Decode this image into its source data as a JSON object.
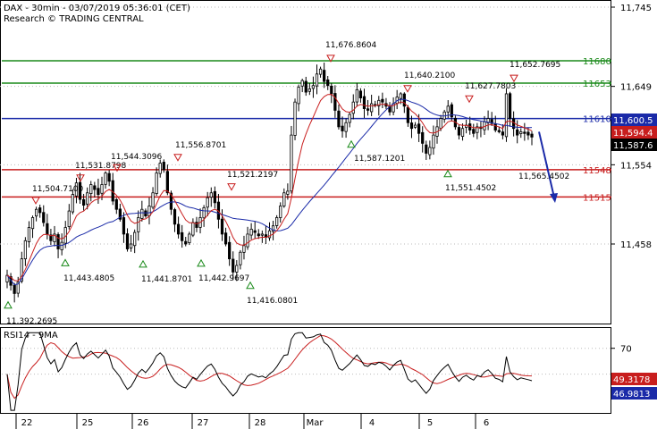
{
  "header": {
    "title": "DAX - 30min - 03/07/2019 05:36:01 (CET)",
    "subtitle": "Research © TRADING CENTRAL"
  },
  "chart_data": {
    "type": "candlestick",
    "price_axis": {
      "ticks": [
        {
          "value": 11745,
          "label": "11,745"
        },
        {
          "value": 11649,
          "label": "11,649"
        },
        {
          "value": 11554,
          "label": "11,554"
        },
        {
          "value": 11458,
          "label": "11,458"
        }
      ]
    },
    "x_axis": {
      "labels": [
        "22",
        "25",
        "26",
        "27",
        "28",
        "Mar",
        "4",
        "5",
        "6"
      ]
    },
    "levels": [
      {
        "value": 11680,
        "label": "11680",
        "color": "#1a8a1a"
      },
      {
        "value": 11653,
        "label": "11653",
        "color": "#1a8a1a"
      },
      {
        "value": 11610,
        "label": "11610",
        "color": "#1a2aa8"
      },
      {
        "value": 11548,
        "label": "11548",
        "color": "#c81e1e"
      },
      {
        "value": 11515,
        "label": "11515",
        "color": "#c81e1e"
      }
    ],
    "price_tags": [
      {
        "value": 11600.5,
        "label": "11,600.5",
        "bg": "#1a2aa8"
      },
      {
        "value": 11594.4,
        "label": "11,594.4",
        "bg": "#c81e1e"
      },
      {
        "value": 11587.6,
        "label": "11,587.6",
        "bg": "#000000"
      }
    ],
    "swing_highs": [
      {
        "label": "11,504.7100",
        "value": 11504.71
      },
      {
        "label": "11,531.8798",
        "value": 11531.8798
      },
      {
        "label": "11,544.3096",
        "value": 11544.3096
      },
      {
        "label": "11,556.8701",
        "value": 11556.8701
      },
      {
        "label": "11,521.2197",
        "value": 11521.2197
      },
      {
        "label": "11,676.8604",
        "value": 11676.8604
      },
      {
        "label": "11,640.2100",
        "value": 11640.21
      },
      {
        "label": "11,627.7803",
        "value": 11627.7803
      },
      {
        "label": "11,652.7695",
        "value": 11652.7695
      }
    ],
    "swing_lows": [
      {
        "label": "11,392.2695",
        "value": 11392.2695
      },
      {
        "label": "11,443.4805",
        "value": 11443.4805
      },
      {
        "label": "11,441.8701",
        "value": 11441.8701
      },
      {
        "label": "11,442.9697",
        "value": 11442.9697
      },
      {
        "label": "11,416.0801",
        "value": 11416.0801
      },
      {
        "label": "11,587.1201",
        "value": 11587.1201
      },
      {
        "label": "11,551.4502",
        "value": 11551.4502
      },
      {
        "label": "11,565.4502",
        "value": 11565.4502
      }
    ],
    "close_series": [
      11420,
      11408,
      11398,
      11412,
      11440,
      11462,
      11478,
      11490,
      11500,
      11496,
      11484,
      11470,
      11462,
      11470,
      11452,
      11460,
      11478,
      11498,
      11518,
      11532,
      11512,
      11505,
      11520,
      11530,
      11524,
      11518,
      11530,
      11544,
      11534,
      11510,
      11500,
      11488,
      11470,
      11452,
      11458,
      11472,
      11490,
      11500,
      11492,
      11504,
      11520,
      11544,
      11556,
      11548,
      11520,
      11500,
      11482,
      11470,
      11462,
      11458,
      11470,
      11484,
      11478,
      11490,
      11502,
      11514,
      11520,
      11508,
      11488,
      11470,
      11458,
      11440,
      11424,
      11432,
      11448,
      11456,
      11470,
      11476,
      11472,
      11468,
      11470,
      11466,
      11474,
      11480,
      11490,
      11504,
      11520,
      11522,
      11590,
      11630,
      11648,
      11656,
      11642,
      11646,
      11650,
      11664,
      11670,
      11655,
      11650,
      11640,
      11620,
      11600,
      11595,
      11605,
      11615,
      11630,
      11645,
      11635,
      11622,
      11620,
      11628,
      11626,
      11632,
      11630,
      11625,
      11618,
      11628,
      11636,
      11640,
      11625,
      11605,
      11598,
      11602,
      11592,
      11580,
      11568,
      11575,
      11590,
      11600,
      11610,
      11618,
      11625,
      11612,
      11600,
      11590,
      11598,
      11602,
      11596,
      11592,
      11600,
      11598,
      11606,
      11610,
      11604,
      11596,
      11594,
      11590,
      11640,
      11610,
      11598,
      11590,
      11594,
      11592,
      11590,
      11587.6
    ],
    "ma_series": {
      "fast_color": "#c81e1e",
      "slow_color": "#1a2aa8"
    },
    "forecast": {
      "from": 11594,
      "to": 11510,
      "color": "#1a2aa8"
    },
    "rsi": {
      "label": "RSI14 - 9MA",
      "level": 70,
      "level_label": "70",
      "values": {
        "rsi": 46.9813,
        "ma": 49.3178
      },
      "value_labels": {
        "rsi": "46.9813",
        "ma": "49.3178"
      },
      "rsi_color": "#000000",
      "ma_color": "#c81e1e"
    }
  }
}
